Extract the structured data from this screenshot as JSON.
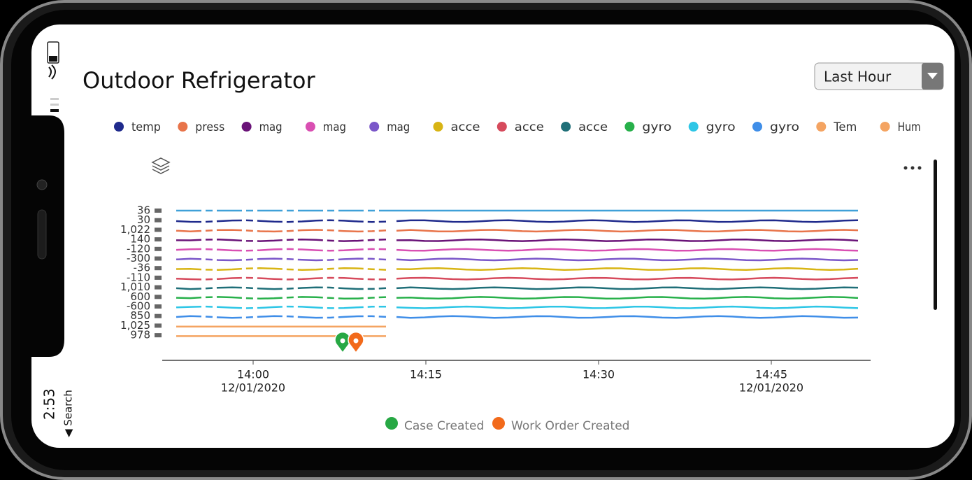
{
  "status": {
    "time": "2:53",
    "back": "◀ Search"
  },
  "header": {
    "title": "Outdoor Refrigerator",
    "range_select": "Last Hour"
  },
  "legend": [
    {
      "name": "temp",
      "color": "#1f2a8c"
    },
    {
      "name": "press",
      "color": "#e8744a"
    },
    {
      "name": "mag",
      "color": "#6a1378"
    },
    {
      "name": "mag",
      "color": "#d94fb2"
    },
    {
      "name": "mag",
      "color": "#7b57c9"
    },
    {
      "name": "acce",
      "color": "#d8b414"
    },
    {
      "name": "acce",
      "color": "#d64a5c"
    },
    {
      "name": "acce",
      "color": "#1f6f78"
    },
    {
      "name": "gyro",
      "color": "#27b04a"
    },
    {
      "name": "gyro",
      "color": "#2ec6e6"
    },
    {
      "name": "gyro",
      "color": "#3f8ee8"
    },
    {
      "name": "Tem",
      "color": "#f4a462"
    },
    {
      "name": "Hum",
      "color": "#f4a462"
    }
  ],
  "lane_labels": [
    "36",
    "30",
    "1,022",
    "140",
    "-120",
    "-300",
    "-36",
    "-110",
    "1,010",
    "600",
    "-600",
    "850",
    "1,025",
    "978"
  ],
  "x_axis": [
    {
      "time": "14:00",
      "date": "12/01/2020"
    },
    {
      "time": "14:15"
    },
    {
      "time": "14:30"
    },
    {
      "time": "14:45",
      "date": "12/01/2020"
    }
  ],
  "events": [
    {
      "name": "Case Created",
      "color": "#27a844"
    },
    {
      "name": "Work Order Created",
      "color": "#f26a1b"
    }
  ]
}
